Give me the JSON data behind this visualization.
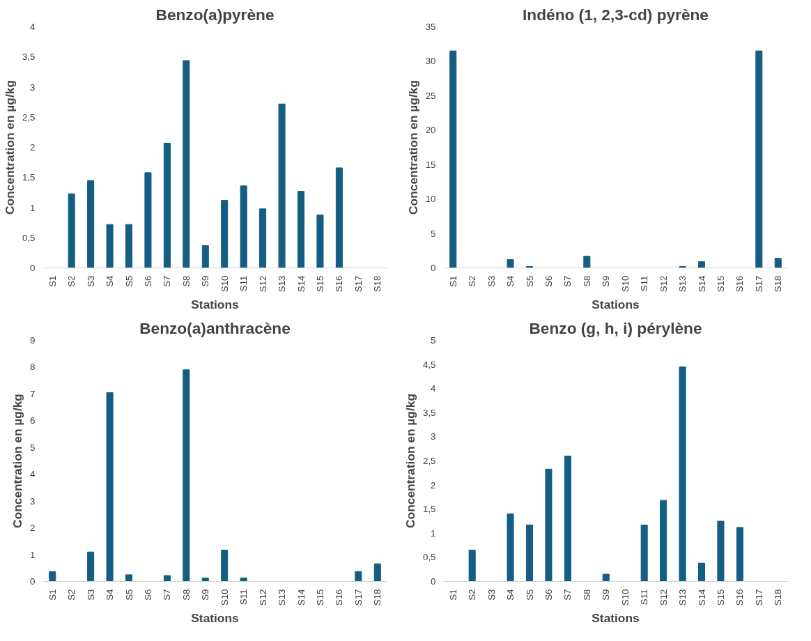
{
  "chart_data": [
    {
      "type": "bar",
      "title": "Benzo(a)pyrène",
      "xlabel": "Stations",
      "ylabel": "Concentration en µg/kg",
      "categories": [
        "S1",
        "S2",
        "S3",
        "S4",
        "S5",
        "S6",
        "S7",
        "S8",
        "S9",
        "S10",
        "S11",
        "S12",
        "S13",
        "S14",
        "S15",
        "S16",
        "S17",
        "S18"
      ],
      "values": [
        0,
        1.23,
        1.45,
        0.72,
        0.72,
        1.58,
        2.07,
        3.44,
        0.37,
        1.12,
        1.36,
        0.98,
        2.72,
        1.27,
        0.88,
        1.66,
        0,
        0
      ],
      "color": "#135e82",
      "ylim": [
        0,
        4
      ],
      "yticks": [
        0,
        {
          "value": 0.5,
          "label": "0,5"
        },
        1,
        {
          "value": 1.5,
          "label": "1,5"
        },
        2,
        {
          "value": 2.5,
          "label": "2,5"
        },
        3,
        {
          "value": 3.5,
          "label": "3,5"
        },
        4
      ],
      "grid": false,
      "legend": false
    },
    {
      "type": "bar",
      "title": "Indéno (1, 2,3-cd) pyrène",
      "xlabel": "Stations",
      "ylabel": "Concentration en µg/kg",
      "categories": [
        "S1",
        "S2",
        "S3",
        "S4",
        "S5",
        "S6",
        "S7",
        "S8",
        "S9",
        "S10",
        "S11",
        "S12",
        "S13",
        "S14",
        "S15",
        "S16",
        "S17",
        "S18"
      ],
      "values": [
        31.5,
        0,
        0,
        1.2,
        0.2,
        0,
        0,
        1.7,
        0,
        0,
        0,
        0,
        0.2,
        0.9,
        0,
        0,
        31.5,
        1.4
      ],
      "color": "#135e82",
      "ylim": [
        0,
        35
      ],
      "yticks": [
        0,
        5,
        10,
        15,
        20,
        25,
        30,
        35
      ],
      "grid": false,
      "legend": false
    },
    {
      "type": "bar",
      "title": "Benzo(a)anthracène",
      "xlabel": "Stations",
      "ylabel": "Concentration en µg/kg",
      "categories": [
        "S1",
        "S2",
        "S3",
        "S4",
        "S5",
        "S6",
        "S7",
        "S8",
        "S9",
        "S10",
        "S11",
        "S12",
        "S13",
        "S14",
        "S15",
        "S16",
        "S17",
        "S18"
      ],
      "values": [
        0.37,
        0,
        1.1,
        7.05,
        0.25,
        0,
        0.22,
        7.9,
        0.13,
        1.17,
        0.13,
        0,
        0,
        0,
        0,
        0,
        0.37,
        0.66
      ],
      "color": "#135e82",
      "ylim": [
        0,
        9
      ],
      "yticks": [
        0,
        1,
        2,
        3,
        4,
        5,
        6,
        7,
        8,
        9
      ],
      "grid": false,
      "legend": false
    },
    {
      "type": "bar",
      "title": "Benzo (g, h, i) pérylène",
      "xlabel": "Stations",
      "ylabel": "Concentration en µg/kg",
      "categories": [
        "S1",
        "S2",
        "S3",
        "S4",
        "S5",
        "S6",
        "S7",
        "S8",
        "S9",
        "S10",
        "S11",
        "S12",
        "S13",
        "S14",
        "S15",
        "S16",
        "S17",
        "S18"
      ],
      "values": [
        0,
        0.65,
        0,
        1.4,
        1.17,
        2.33,
        2.6,
        0,
        0.15,
        0,
        1.17,
        1.68,
        4.45,
        0.38,
        1.25,
        1.12,
        0,
        0
      ],
      "color": "#135e82",
      "ylim": [
        0,
        5
      ],
      "yticks": [
        0,
        {
          "value": 0.5,
          "label": "0,5"
        },
        1,
        {
          "value": 1.5,
          "label": "1,5"
        },
        2,
        {
          "value": 2.5,
          "label": "2,5"
        },
        3,
        {
          "value": 3.5,
          "label": "3,5"
        },
        4,
        {
          "value": 4.5,
          "label": "4,5"
        },
        5
      ],
      "grid": false,
      "legend": false
    }
  ]
}
